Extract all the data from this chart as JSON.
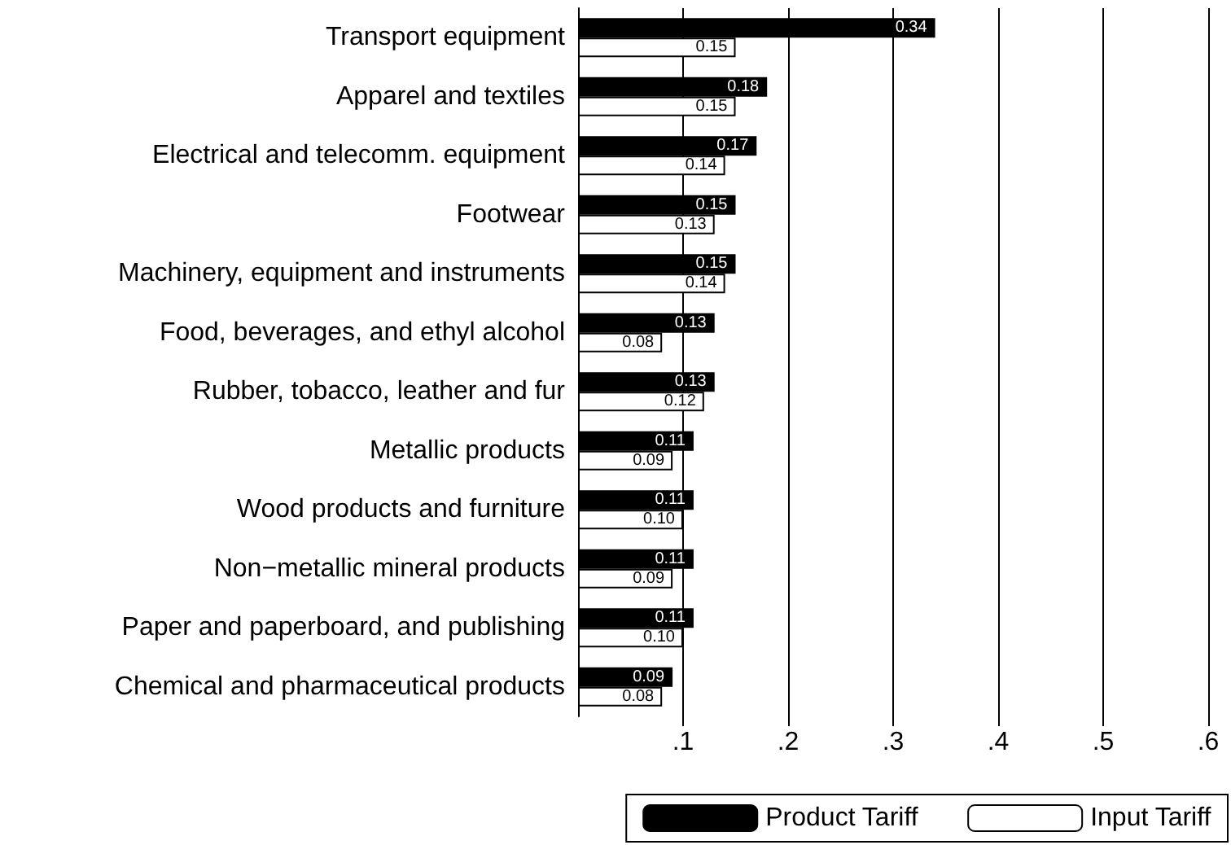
{
  "chart_data": {
    "type": "bar",
    "orientation": "horizontal",
    "categories": [
      "Transport equipment",
      "Apparel and textiles",
      "Electrical and telecomm. equipment",
      "Footwear",
      "Machinery, equipment and instruments",
      "Food, beverages, and ethyl alcohol",
      "Rubber, tobacco, leather and fur",
      "Metallic products",
      "Wood products and furniture",
      "Non−metallic mineral products",
      "Paper and paperboard, and publishing",
      "Chemical and pharmaceutical products"
    ],
    "series": [
      {
        "name": "Product Tariff",
        "color": "#000000",
        "values": [
          0.34,
          0.18,
          0.17,
          0.15,
          0.15,
          0.13,
          0.13,
          0.11,
          0.11,
          0.11,
          0.11,
          0.09
        ],
        "value_labels": [
          "0.34",
          "0.18",
          "0.17",
          "0.15",
          "0.15",
          "0.13",
          "0.13",
          "0.11",
          "0.11",
          "0.11",
          "0.11",
          "0.09"
        ]
      },
      {
        "name": "Input Tariff",
        "color": "#ffffff",
        "values": [
          0.15,
          0.15,
          0.14,
          0.13,
          0.14,
          0.08,
          0.12,
          0.09,
          0.1,
          0.09,
          0.1,
          0.08
        ],
        "value_labels": [
          "0.15",
          "0.15",
          "0.14",
          "0.13",
          "0.14",
          "0.08",
          "0.12",
          "0.09",
          "0.10",
          "0.09",
          "0.10",
          "0.08"
        ]
      }
    ],
    "xlim": [
      0,
      0.6
    ],
    "xticks": [
      {
        "value": 0.1,
        "label": ".1"
      },
      {
        "value": 0.2,
        "label": ".2"
      },
      {
        "value": 0.3,
        "label": ".3"
      },
      {
        "value": 0.4,
        "label": ".4"
      },
      {
        "value": 0.5,
        "label": ".5"
      },
      {
        "value": 0.6,
        "label": ".6"
      }
    ],
    "grid": "x",
    "legend": "bottom right"
  }
}
